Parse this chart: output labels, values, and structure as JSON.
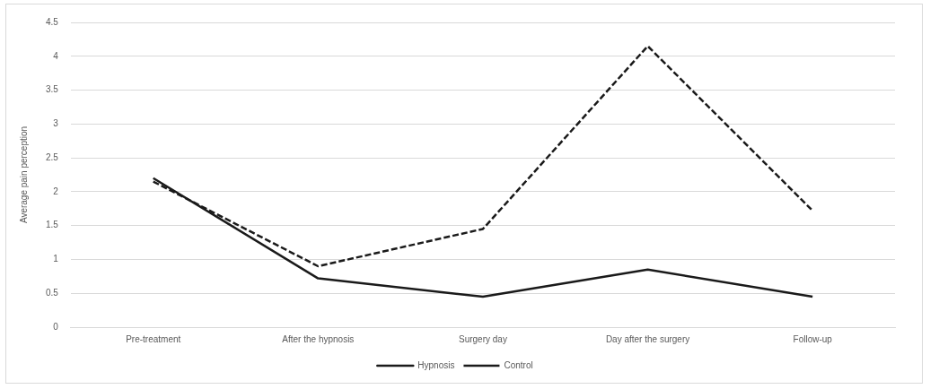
{
  "chart_data": {
    "type": "line",
    "ylabel": "Average pain perception",
    "categories": [
      "Pre-treatment",
      "After the hypnosis",
      "Surgery day",
      "Day after the surgery",
      "Follow-up"
    ],
    "series": [
      {
        "name": "Hypnosis",
        "color": "#1a1a1a",
        "values": [
          2.2,
          0.72,
          0.45,
          0.85,
          0.45
        ],
        "line_style": "solid"
      },
      {
        "name": "Control",
        "color": "#1a1a1a",
        "values": [
          2.15,
          0.9,
          1.45,
          4.15,
          1.72
        ],
        "line_style": "dashed"
      }
    ],
    "ylim": [
      0,
      4.5
    ],
    "yticks": [
      0,
      0.5,
      1,
      1.5,
      2,
      2.5,
      3,
      3.5,
      4,
      4.5
    ],
    "grid": "y",
    "legend": "bottom",
    "marker": "none"
  }
}
